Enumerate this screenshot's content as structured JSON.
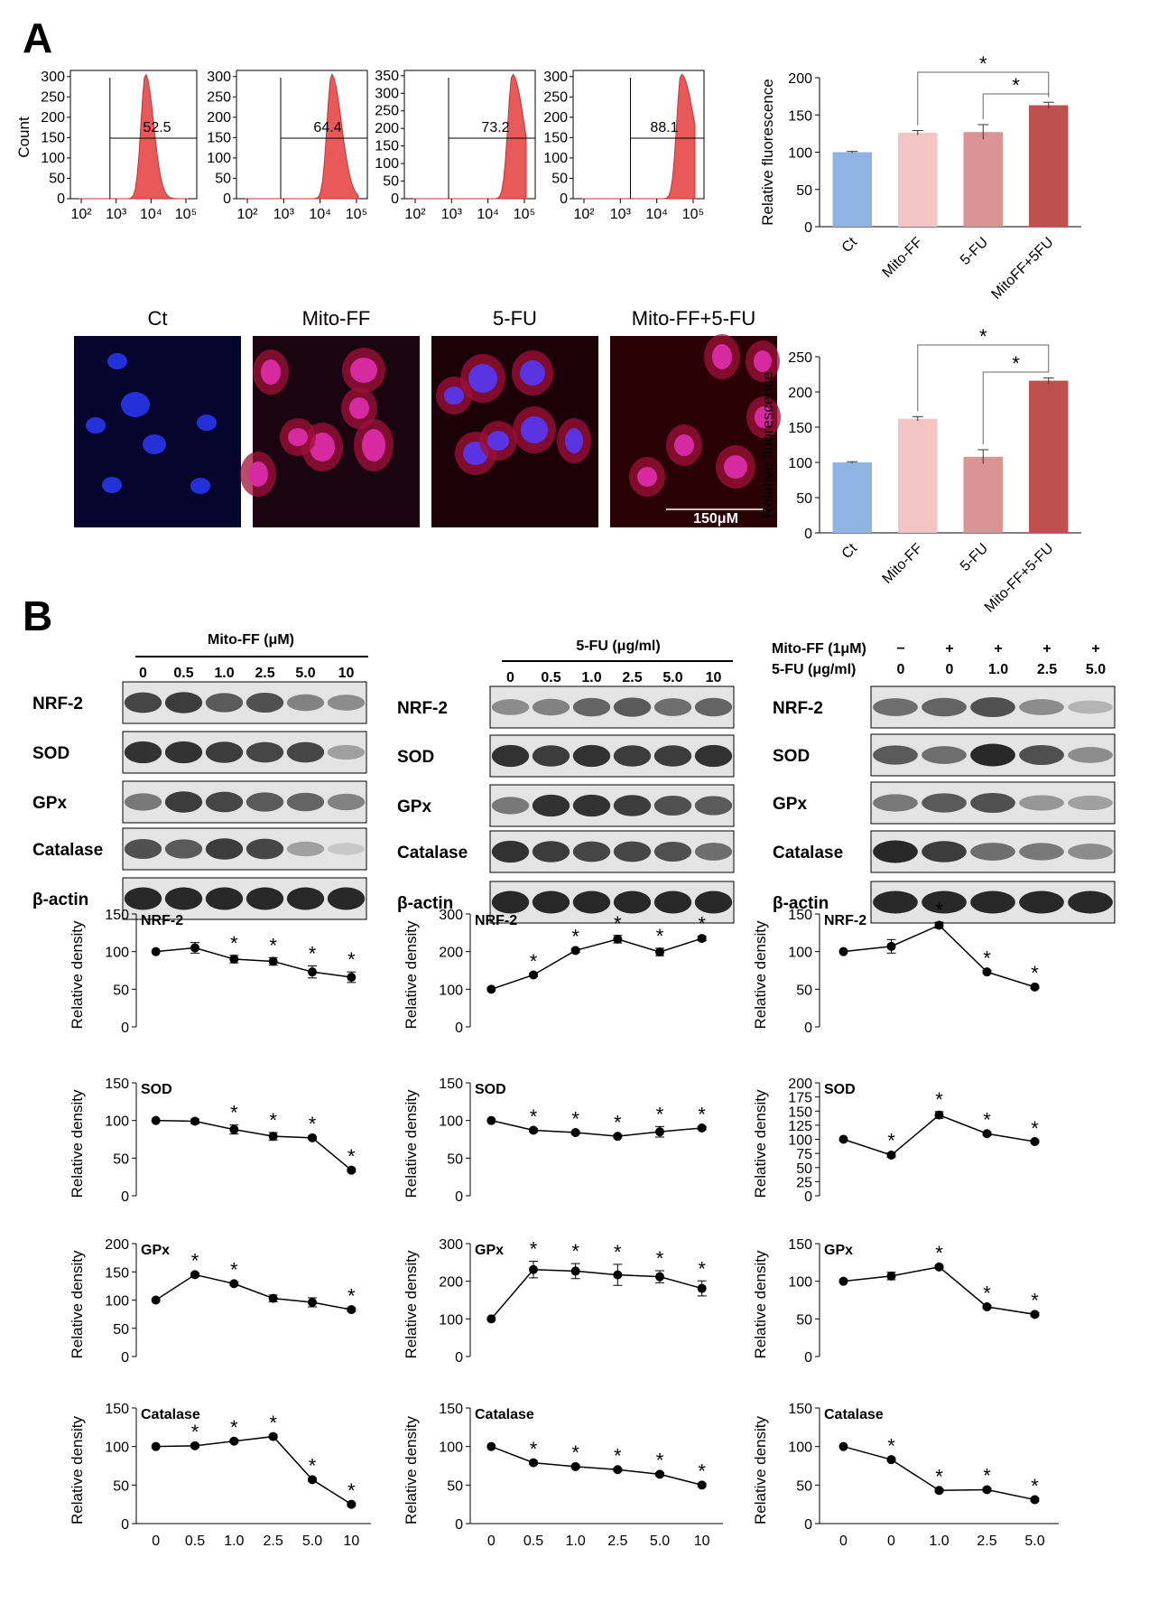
{
  "panels": {
    "a_letter": "A",
    "b_letter": "B"
  },
  "flow": {
    "ylabel": "Count",
    "x_ticks": [
      "10²",
      "10³",
      "10⁴",
      "10⁵"
    ],
    "histograms": [
      {
        "percent": "52.5",
        "y_ticks": [
          "0",
          "50",
          "100",
          "150",
          "200",
          "250",
          "300"
        ]
      },
      {
        "percent": "64.4",
        "y_ticks": [
          "0",
          "50",
          "100",
          "150",
          "200",
          "250",
          "300"
        ]
      },
      {
        "percent": "73.2",
        "y_ticks": [
          "0",
          "50",
          "100",
          "150",
          "200",
          "250",
          "300",
          "350"
        ]
      },
      {
        "percent": "88.1",
        "y_ticks": [
          "0",
          "50",
          "100",
          "150",
          "200",
          "250",
          "300"
        ]
      }
    ],
    "fill_color": "#e8595a"
  },
  "micrographs": {
    "titles": [
      "Ct",
      "Mito-FF",
      "5-FU",
      "Mito-FF+5-FU"
    ],
    "scale_bar": "150μM"
  },
  "chart_data": [
    {
      "type": "bar",
      "id": "flow-bars",
      "categories": [
        "Ct",
        "Mito-FF",
        "5-FU",
        "MitoFF+5FU"
      ],
      "values": [
        100,
        126,
        127,
        163
      ],
      "errors": [
        1,
        3,
        10,
        4
      ],
      "ylabel": "Relative fluorescence",
      "ylim": [
        0,
        200
      ],
      "yticks": [
        0,
        50,
        100,
        150,
        200
      ],
      "colors": [
        "#8fb4e3",
        "#f2c4c4",
        "#da9494",
        "#c0504d"
      ],
      "stars": "*"
    },
    {
      "type": "bar",
      "id": "image-bars",
      "categories": [
        "Ct",
        "Mito-FF",
        "5-FU",
        "Mito-FF+5-FU"
      ],
      "values": [
        100,
        162,
        108,
        216
      ],
      "errors": [
        1,
        3,
        10,
        4
      ],
      "ylabel": "Relative fluorescence",
      "ylim": [
        0,
        250
      ],
      "yticks": [
        0,
        50,
        100,
        150,
        200,
        250
      ],
      "colors": [
        "#8fb4e3",
        "#f2c4c4",
        "#da9494",
        "#c0504d"
      ],
      "stars": "*"
    },
    {
      "type": "line",
      "id": "mff-nrf2",
      "title": "NRF-2",
      "ylabel": "Relative density",
      "x": [
        "0",
        "0.5",
        "1.0",
        "2.5",
        "5.0",
        "10"
      ],
      "values": [
        100,
        105,
        90,
        87,
        73,
        66
      ],
      "errors": [
        0,
        7,
        5,
        5,
        8,
        7
      ],
      "sig": [
        false,
        false,
        true,
        true,
        true,
        true
      ],
      "ylim": [
        0,
        150
      ],
      "yticks": [
        0,
        50,
        100,
        150
      ]
    },
    {
      "type": "line",
      "id": "mff-sod",
      "title": "SOD",
      "ylabel": "Relative density",
      "x": [
        "0",
        "0.5",
        "1.0",
        "2.5",
        "5.0",
        "10"
      ],
      "values": [
        100,
        99,
        88,
        79,
        77,
        34
      ],
      "errors": [
        0,
        3,
        6,
        5,
        2,
        2
      ],
      "sig": [
        false,
        false,
        true,
        true,
        true,
        true
      ],
      "ylim": [
        0,
        150
      ],
      "yticks": [
        0,
        50,
        100,
        150
      ]
    },
    {
      "type": "line",
      "id": "mff-gpx",
      "title": "GPx",
      "ylabel": "Relative density",
      "x": [
        "0",
        "0.5",
        "1.0",
        "2.5",
        "5.0",
        "10"
      ],
      "values": [
        100,
        145,
        129,
        103,
        96,
        83
      ],
      "errors": [
        0,
        3,
        3,
        6,
        8,
        3
      ],
      "sig": [
        false,
        true,
        true,
        false,
        false,
        true
      ],
      "ylim": [
        0,
        200
      ],
      "yticks": [
        0,
        50,
        100,
        150,
        200
      ]
    },
    {
      "type": "line",
      "id": "mff-catalase",
      "title": "Catalase",
      "ylabel": "Relative density",
      "x": [
        "0",
        "0.5",
        "1.0",
        "2.5",
        "5.0",
        "10"
      ],
      "values": [
        100,
        101,
        107,
        113,
        57,
        25
      ],
      "errors": [
        0,
        2,
        2,
        2,
        2,
        2
      ],
      "sig": [
        false,
        true,
        true,
        true,
        true,
        true
      ],
      "ylim": [
        0,
        150
      ],
      "yticks": [
        0,
        50,
        100,
        150
      ]
    },
    {
      "type": "line",
      "id": "fu-nrf2",
      "title": "NRF-2",
      "ylabel": "Relative density",
      "x": [
        "0",
        "0.5",
        "1.0",
        "2.5",
        "5.0",
        "10"
      ],
      "values": [
        100,
        138,
        203,
        233,
        199,
        235
      ],
      "errors": [
        0,
        4,
        5,
        10,
        10,
        6
      ],
      "sig": [
        false,
        true,
        true,
        true,
        true,
        true
      ],
      "ylim": [
        0,
        300
      ],
      "yticks": [
        0,
        100,
        200,
        300
      ]
    },
    {
      "type": "line",
      "id": "fu-sod",
      "title": "SOD",
      "ylabel": "Relative density",
      "x": [
        "0",
        "0.5",
        "1.0",
        "2.5",
        "5.0",
        "10"
      ],
      "values": [
        100,
        87,
        84,
        79,
        85,
        90
      ],
      "errors": [
        0,
        2,
        2,
        2,
        7,
        2
      ],
      "sig": [
        false,
        true,
        true,
        true,
        true,
        true
      ],
      "ylim": [
        0,
        150
      ],
      "yticks": [
        0,
        50,
        100,
        150
      ]
    },
    {
      "type": "line",
      "id": "fu-gpx",
      "title": "GPx",
      "ylabel": "Relative density",
      "x": [
        "0",
        "0.5",
        "1.0",
        "2.5",
        "5.0",
        "10"
      ],
      "values": [
        100,
        231,
        227,
        217,
        212,
        181
      ],
      "errors": [
        0,
        22,
        20,
        28,
        16,
        20
      ],
      "sig": [
        false,
        true,
        true,
        true,
        true,
        true
      ],
      "ylim": [
        0,
        300
      ],
      "yticks": [
        0,
        100,
        200,
        300
      ]
    },
    {
      "type": "line",
      "id": "fu-catalase",
      "title": "Catalase",
      "ylabel": "Relative density",
      "x": [
        "0",
        "0.5",
        "1.0",
        "2.5",
        "5.0",
        "10"
      ],
      "values": [
        100,
        79,
        74,
        70,
        64,
        50
      ],
      "errors": [
        0,
        2,
        2,
        2,
        2,
        2
      ],
      "sig": [
        false,
        true,
        true,
        true,
        true,
        true
      ],
      "ylim": [
        0,
        150
      ],
      "yticks": [
        0,
        50,
        100,
        150
      ]
    },
    {
      "type": "line",
      "id": "co-nrf2",
      "title": "NRF-2",
      "ylabel": "Relative density",
      "x": [
        "0",
        "0",
        "1.0",
        "2.5",
        "5.0"
      ],
      "values": [
        100,
        107,
        135,
        73,
        53
      ],
      "errors": [
        0,
        9,
        4,
        2,
        2
      ],
      "sig": [
        false,
        false,
        true,
        true,
        true
      ],
      "ylim": [
        0,
        150
      ],
      "yticks": [
        0,
        50,
        100,
        150
      ]
    },
    {
      "type": "line",
      "id": "co-sod",
      "title": "SOD",
      "ylabel": "Relative density",
      "x": [
        "0",
        "0",
        "1.0",
        "2.5",
        "5.0"
      ],
      "values": [
        100,
        72,
        143,
        110,
        96
      ],
      "errors": [
        0,
        4,
        6,
        3,
        2
      ],
      "sig": [
        false,
        true,
        true,
        true,
        true
      ],
      "ylim": [
        0,
        200
      ],
      "yticks": [
        0,
        25,
        50,
        75,
        100,
        125,
        150,
        175,
        200
      ]
    },
    {
      "type": "line",
      "id": "co-gpx",
      "title": "GPx",
      "ylabel": "Relative density",
      "x": [
        "0",
        "0",
        "1.0",
        "2.5",
        "5.0"
      ],
      "values": [
        100,
        107,
        119,
        66,
        56
      ],
      "errors": [
        0,
        5,
        2,
        2,
        2
      ],
      "sig": [
        false,
        false,
        true,
        true,
        true
      ],
      "ylim": [
        0,
        150
      ],
      "yticks": [
        0,
        50,
        100,
        150
      ]
    },
    {
      "type": "line",
      "id": "co-catalase",
      "title": "Catalase",
      "ylabel": "Relative density",
      "x": [
        "0",
        "0",
        "1.0",
        "2.5",
        "5.0"
      ],
      "values": [
        100,
        83,
        43,
        44,
        31
      ],
      "errors": [
        0,
        2,
        2,
        2,
        2
      ],
      "sig": [
        false,
        true,
        true,
        true,
        true
      ],
      "ylim": [
        0,
        150
      ],
      "yticks": [
        0,
        50,
        100,
        150
      ]
    }
  ],
  "blots": {
    "mito_ff": {
      "header": "Mito-FF (μM)",
      "doses": [
        "0",
        "0.5",
        "1.0",
        "2.5",
        "5.0",
        "10"
      ],
      "rows": [
        {
          "label": "NRF-2",
          "intensity": [
            0.8,
            0.85,
            0.7,
            0.75,
            0.5,
            0.45
          ]
        },
        {
          "label": "SOD",
          "intensity": [
            0.9,
            0.9,
            0.85,
            0.8,
            0.8,
            0.35
          ]
        },
        {
          "label": "GPx",
          "intensity": [
            0.55,
            0.85,
            0.8,
            0.7,
            0.65,
            0.5
          ]
        },
        {
          "label": "Catalase",
          "intensity": [
            0.75,
            0.7,
            0.85,
            0.8,
            0.35,
            0.15
          ]
        },
        {
          "label": "β-actin",
          "intensity": [
            0.95,
            0.95,
            0.95,
            0.95,
            0.95,
            0.95
          ]
        }
      ]
    },
    "fu": {
      "header": "5-FU (μg/ml)",
      "doses": [
        "0",
        "0.5",
        "1.0",
        "2.5",
        "5.0",
        "10"
      ],
      "rows": [
        {
          "label": "NRF-2",
          "intensity": [
            0.45,
            0.5,
            0.65,
            0.7,
            0.6,
            0.65
          ]
        },
        {
          "label": "SOD",
          "intensity": [
            0.9,
            0.85,
            0.9,
            0.85,
            0.85,
            0.9
          ]
        },
        {
          "label": "GPx",
          "intensity": [
            0.55,
            0.9,
            0.9,
            0.85,
            0.75,
            0.7
          ]
        },
        {
          "label": "Catalase",
          "intensity": [
            0.9,
            0.85,
            0.8,
            0.8,
            0.75,
            0.6
          ]
        },
        {
          "label": "β-actin",
          "intensity": [
            0.95,
            0.95,
            0.95,
            0.95,
            0.95,
            0.95
          ]
        }
      ]
    },
    "combo": {
      "row1_label": "Mito-FF (1μM)",
      "row1": [
        "−",
        "+",
        "+",
        "+",
        "+"
      ],
      "row2_label": "5-FU (μg/ml)",
      "row2": [
        "0",
        "0",
        "1.0",
        "2.5",
        "5.0"
      ],
      "rows": [
        {
          "label": "NRF-2",
          "intensity": [
            0.6,
            0.65,
            0.75,
            0.45,
            0.25
          ]
        },
        {
          "label": "SOD",
          "intensity": [
            0.7,
            0.6,
            0.95,
            0.75,
            0.45
          ]
        },
        {
          "label": "GPx",
          "intensity": [
            0.55,
            0.7,
            0.75,
            0.4,
            0.35
          ]
        },
        {
          "label": "Catalase",
          "intensity": [
            0.95,
            0.85,
            0.6,
            0.55,
            0.45
          ]
        },
        {
          "label": "β-actin",
          "intensity": [
            0.95,
            0.95,
            0.95,
            0.95,
            0.95
          ]
        }
      ]
    }
  }
}
